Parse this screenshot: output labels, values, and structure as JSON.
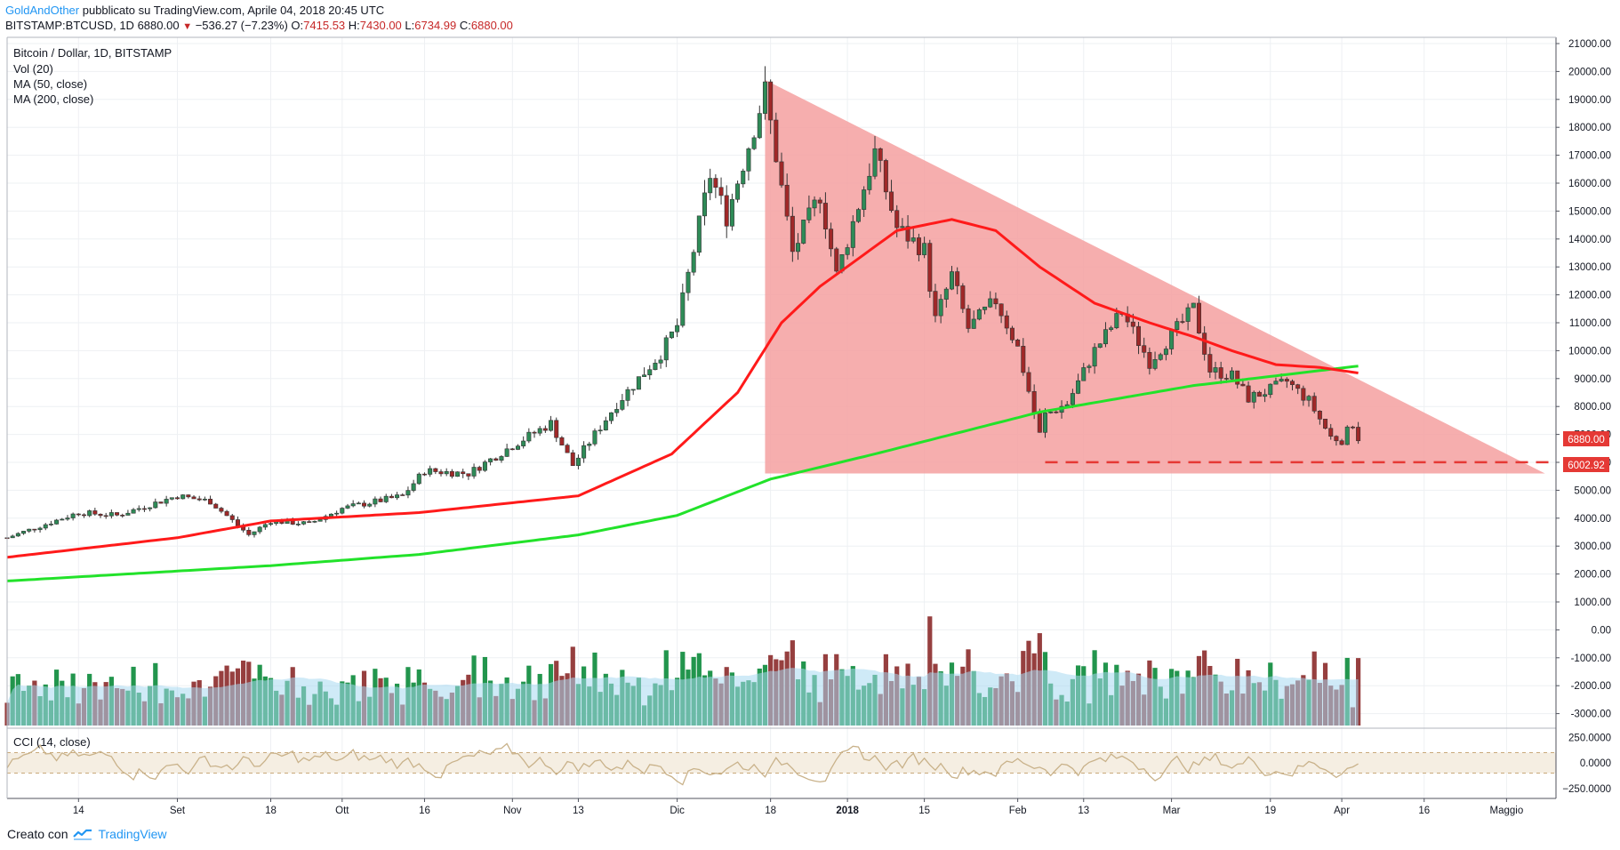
{
  "header": {
    "author": "GoldAndOther",
    "published": "pubblicato su TradingView.com, Aprile 04, 2018 20:45 UTC",
    "symbol": "BITSTAMP:BTCUSD, 1D",
    "last": "6880.00",
    "change_arrow": "▼",
    "change": "−536.27 (−7.23%)",
    "o_label": "O:",
    "o": "7415.53",
    "h_label": "H:",
    "h": "7430.00",
    "l_label": "L:",
    "l": "6734.99",
    "c_label": "C:",
    "c": "6880.00"
  },
  "legend": {
    "title": "Bitcoin / Dollar, 1D, BITSTAMP",
    "vol": "Vol (20)",
    "ma50": "MA (50, close)",
    "ma200": "MA (200, close)",
    "cci": "CCI (14, close)"
  },
  "footer": {
    "label": "Creato con",
    "brand": "TradingView",
    "logo_icon": "tradingview-logo-icon"
  },
  "colors": {
    "up": "#00802b",
    "down": "#8b1a1a",
    "ma50": "#ff1a1a",
    "ma200": "#22e22a",
    "triangle": "#f4a0a0",
    "support": "#e53935",
    "vol_ma": "#a8d8f0",
    "cci": "#c9b28a",
    "cci_band": "#f5eee2",
    "price_badge": "#e53935"
  },
  "chart_data": {
    "type": "candlestick",
    "title": "Bitcoin / Dollar, 1D, BITSTAMP",
    "x_ticks": [
      "14",
      "Set",
      "18",
      "Ott",
      "16",
      "Nov",
      "13",
      "Dic",
      "18",
      "2018",
      "15",
      "Feb",
      "13",
      "Mar",
      "19",
      "Apr",
      "16",
      "Maggio"
    ],
    "x_tick_dates": [
      "2017-08-14",
      "2017-09-01",
      "2017-09-18",
      "2017-10-01",
      "2017-10-16",
      "2017-11-01",
      "2017-11-13",
      "2017-12-01",
      "2017-12-18",
      "2018-01-01",
      "2018-01-15",
      "2018-02-01",
      "2018-02-13",
      "2018-03-01",
      "2018-03-19",
      "2018-04-01",
      "2018-04-16",
      "2018-05-01"
    ],
    "x_range": [
      "2017-08-01",
      "2018-05-10"
    ],
    "y_ticks": [
      "21000.00",
      "20000.00",
      "19000.00",
      "18000.00",
      "17000.00",
      "16000.00",
      "15000.00",
      "14000.00",
      "13000.00",
      "12000.00",
      "11000.00",
      "10000.00",
      "9000.00",
      "8000.00",
      "7000.00",
      "6000.00",
      "5000.00",
      "4000.00",
      "3000.00",
      "2000.00",
      "1000.00",
      "0.00",
      "-1000.00",
      "-2000.00",
      "-3000.00"
    ],
    "y_range": [
      -3300,
      21000
    ],
    "last_price_label": "6880.00",
    "support_label": "6002.92",
    "support_level": 6002.92,
    "cci_ticks": [
      "250.0000",
      "0.0000",
      "−250.0000"
    ],
    "cci_range": [
      -300,
      300
    ],
    "cci_band": [
      -100,
      100
    ],
    "price_close_keypoints": [
      [
        "2017-08-01",
        3300
      ],
      [
        "2017-08-14",
        4200
      ],
      [
        "2017-08-21",
        4100
      ],
      [
        "2017-09-01",
        4800
      ],
      [
        "2017-09-07",
        4600
      ],
      [
        "2017-09-14",
        3400
      ],
      [
        "2017-09-18",
        3900
      ],
      [
        "2017-09-25",
        3800
      ],
      [
        "2017-10-01",
        4350
      ],
      [
        "2017-10-12",
        4800
      ],
      [
        "2017-10-16",
        5700
      ],
      [
        "2017-10-24",
        5600
      ],
      [
        "2017-11-01",
        6600
      ],
      [
        "2017-11-08",
        7400
      ],
      [
        "2017-11-12",
        5900
      ],
      [
        "2017-11-20",
        8100
      ],
      [
        "2017-11-28",
        9900
      ],
      [
        "2017-12-01",
        10900
      ],
      [
        "2017-12-07",
        16300
      ],
      [
        "2017-12-10",
        14800
      ],
      [
        "2017-12-17",
        19300
      ],
      [
        "2017-12-22",
        13500
      ],
      [
        "2017-12-27",
        15600
      ],
      [
        "2017-12-30",
        12700
      ],
      [
        "2018-01-06",
        17100
      ],
      [
        "2018-01-10",
        14400
      ],
      [
        "2018-01-15",
        13600
      ],
      [
        "2018-01-17",
        11100
      ],
      [
        "2018-01-20",
        12700
      ],
      [
        "2018-01-23",
        10800
      ],
      [
        "2018-01-28",
        11800
      ],
      [
        "2018-02-01",
        10100
      ],
      [
        "2018-02-05",
        7000
      ],
      [
        "2018-02-06",
        7700
      ],
      [
        "2018-02-10",
        8100
      ],
      [
        "2018-02-15",
        10000
      ],
      [
        "2018-02-20",
        11400
      ],
      [
        "2018-02-25",
        9600
      ],
      [
        "2018-03-05",
        11500
      ],
      [
        "2018-03-08",
        9300
      ],
      [
        "2018-03-12",
        9100
      ],
      [
        "2018-03-15",
        8300
      ],
      [
        "2018-03-19",
        8600
      ],
      [
        "2018-03-22",
        8900
      ],
      [
        "2018-03-26",
        8200
      ],
      [
        "2018-03-30",
        6900
      ],
      [
        "2018-04-01",
        6800
      ],
      [
        "2018-04-02",
        7100
      ],
      [
        "2018-04-03",
        7400
      ],
      [
        "2018-04-04",
        6880
      ]
    ],
    "ma50_keypoints": [
      [
        "2017-08-01",
        2600
      ],
      [
        "2017-09-01",
        3300
      ],
      [
        "2017-09-18",
        3900
      ],
      [
        "2017-10-15",
        4200
      ],
      [
        "2017-11-13",
        4800
      ],
      [
        "2017-11-30",
        6300
      ],
      [
        "2017-12-12",
        8500
      ],
      [
        "2017-12-20",
        11000
      ],
      [
        "2017-12-27",
        12300
      ],
      [
        "2018-01-10",
        14300
      ],
      [
        "2018-01-20",
        14700
      ],
      [
        "2018-01-28",
        14300
      ],
      [
        "2018-02-05",
        13000
      ],
      [
        "2018-02-15",
        11700
      ],
      [
        "2018-02-25",
        11000
      ],
      [
        "2018-03-05",
        10500
      ],
      [
        "2018-03-12",
        10000
      ],
      [
        "2018-03-20",
        9500
      ],
      [
        "2018-03-28",
        9400
      ],
      [
        "2018-04-04",
        9200
      ]
    ],
    "ma200_keypoints": [
      [
        "2017-08-01",
        1750
      ],
      [
        "2017-09-18",
        2300
      ],
      [
        "2017-10-15",
        2700
      ],
      [
        "2017-11-13",
        3400
      ],
      [
        "2017-12-01",
        4100
      ],
      [
        "2017-12-18",
        5400
      ],
      [
        "2018-01-06",
        6300
      ],
      [
        "2018-02-05",
        7800
      ],
      [
        "2018-03-05",
        8750
      ],
      [
        "2018-04-04",
        9450
      ]
    ],
    "triangle": [
      [
        "2017-12-17",
        19700
      ],
      [
        "2017-12-17",
        5600
      ],
      [
        "2018-05-08",
        5600
      ]
    ]
  }
}
